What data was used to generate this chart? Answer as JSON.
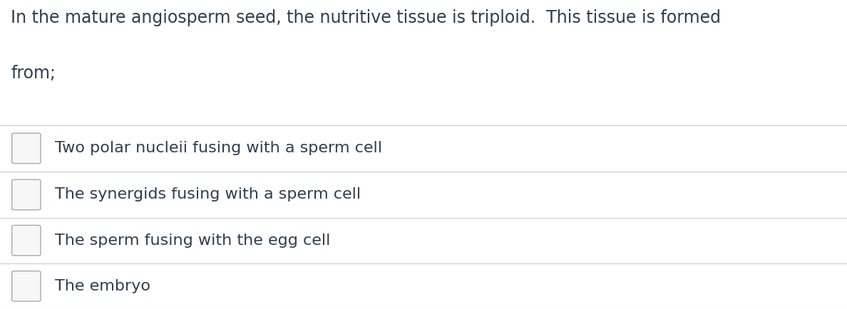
{
  "background_color": "#ffffff",
  "question_text_line1": "In the mature angiosperm seed, the nutritive tissue is triploid.  This tissue is formed",
  "question_text_line2": "from;",
  "options": [
    "Two polar nucleii fusing with a sperm cell",
    "The synergids fusing with a sperm cell",
    "The sperm fusing with the egg cell",
    "The embryo"
  ],
  "text_color": "#2d3e50",
  "line_color": "#cccccc",
  "checkbox_color": "#aaaaaa",
  "checkbox_fill": "#f7f7f7",
  "question_fontsize": 17,
  "option_fontsize": 16,
  "font_family": "sans-serif"
}
